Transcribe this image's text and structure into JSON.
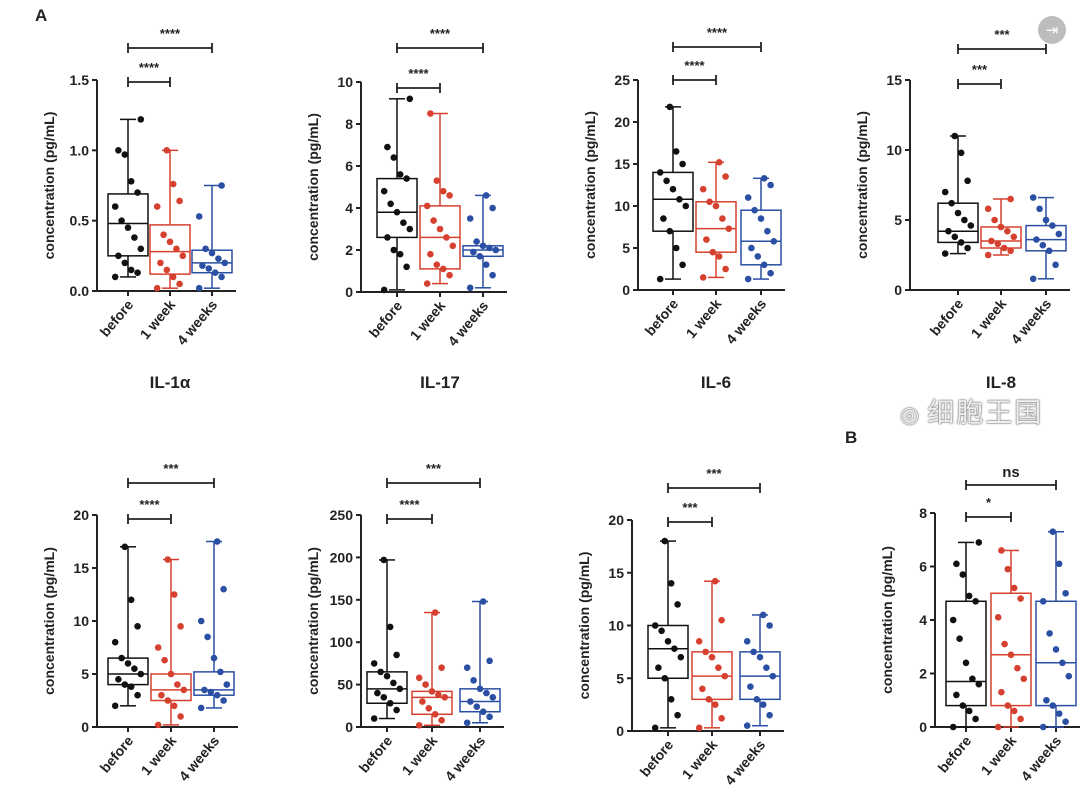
{
  "panel_labels": {
    "a": "A",
    "b": "B"
  },
  "export_icon": "export-icon",
  "watermark": "细胞王国",
  "chart_data": [
    {
      "type": "box",
      "title": "IL-1α",
      "ylabel": "concentration (pg/mL)",
      "ylim": [
        0,
        1.5
      ],
      "yticks": [
        "0.0",
        "0.5",
        "1.0",
        "1.5"
      ],
      "yticks_values": [
        0,
        0.5,
        1.0,
        1.5
      ],
      "categories": [
        "before",
        "1 week",
        "4 weeks"
      ],
      "colors": [
        "#111111",
        "#d6402f",
        "#2a4fa3"
      ],
      "series": [
        {
          "min": 0.1,
          "q1": 0.25,
          "median": 0.48,
          "q3": 0.69,
          "max": 1.22,
          "points": [
            0.1,
            0.13,
            0.15,
            0.2,
            0.25,
            0.3,
            0.38,
            0.45,
            0.5,
            0.6,
            0.7,
            0.78,
            0.97,
            1.0,
            1.22
          ]
        },
        {
          "min": 0.02,
          "q1": 0.12,
          "median": 0.28,
          "q3": 0.47,
          "max": 1.0,
          "points": [
            0.02,
            0.05,
            0.1,
            0.15,
            0.2,
            0.25,
            0.3,
            0.35,
            0.4,
            0.6,
            0.64,
            0.76,
            1.0
          ]
        },
        {
          "min": 0.02,
          "q1": 0.13,
          "median": 0.2,
          "q3": 0.29,
          "max": 0.75,
          "points": [
            0.02,
            0.1,
            0.13,
            0.16,
            0.18,
            0.2,
            0.23,
            0.27,
            0.3,
            0.53,
            0.75
          ]
        }
      ],
      "comparisons": [
        {
          "pair": [
            "before",
            "1 week"
          ],
          "label": "****"
        },
        {
          "pair": [
            "before",
            "4 weeks"
          ],
          "label": "****"
        }
      ]
    },
    {
      "type": "box",
      "title": "IL-17",
      "ylabel": "concentration (pg/mL)",
      "ylim": [
        0,
        10
      ],
      "yticks": [
        "0",
        "2",
        "4",
        "6",
        "8",
        "10"
      ],
      "yticks_values": [
        0,
        2,
        4,
        6,
        8,
        10
      ],
      "categories": [
        "before",
        "1 week",
        "4 weeks"
      ],
      "colors": [
        "#111111",
        "#d6402f",
        "#2a4fa3"
      ],
      "series": [
        {
          "min": 0.1,
          "q1": 2.6,
          "median": 3.8,
          "q3": 5.4,
          "max": 9.2,
          "points": [
            0.1,
            1.2,
            1.8,
            2.0,
            2.6,
            3.0,
            3.3,
            3.8,
            4.2,
            4.8,
            5.4,
            5.6,
            6.4,
            6.9,
            9.2
          ]
        },
        {
          "min": 0.4,
          "q1": 1.1,
          "median": 2.6,
          "q3": 4.1,
          "max": 8.5,
          "points": [
            0.4,
            0.8,
            1.1,
            1.3,
            1.8,
            2.2,
            2.6,
            3.0,
            3.4,
            4.1,
            4.6,
            4.8,
            5.3,
            8.5
          ]
        },
        {
          "min": 0.2,
          "q1": 1.7,
          "median": 2.0,
          "q3": 2.2,
          "max": 4.6,
          "points": [
            0.2,
            0.8,
            1.3,
            1.7,
            1.9,
            2.0,
            2.1,
            2.2,
            2.4,
            3.5,
            4.0,
            4.6
          ]
        }
      ],
      "comparisons": [
        {
          "pair": [
            "before",
            "1 week"
          ],
          "label": "****"
        },
        {
          "pair": [
            "before",
            "4 weeks"
          ],
          "label": "****"
        }
      ]
    },
    {
      "type": "box",
      "title": "IL-6",
      "ylabel": "concentration (pg/mL)",
      "ylim": [
        0,
        25
      ],
      "yticks": [
        "0",
        "5",
        "10",
        "15",
        "20",
        "25"
      ],
      "yticks_values": [
        0,
        5,
        10,
        15,
        20,
        25
      ],
      "categories": [
        "before",
        "1 week",
        "4 weeks"
      ],
      "colors": [
        "#111111",
        "#d6402f",
        "#2a4fa3"
      ],
      "series": [
        {
          "min": 1.3,
          "q1": 7,
          "median": 10.8,
          "q3": 14,
          "max": 21.8,
          "points": [
            1.3,
            3,
            5,
            7,
            8.5,
            10,
            10.8,
            12,
            13,
            14,
            15,
            16.5,
            21.8
          ]
        },
        {
          "min": 1.5,
          "q1": 4.5,
          "median": 7.3,
          "q3": 10.5,
          "max": 15.2,
          "points": [
            1.5,
            2.5,
            4,
            4.5,
            6,
            7.3,
            8.5,
            10,
            10.5,
            12,
            13.5,
            15.2
          ]
        },
        {
          "min": 1.3,
          "q1": 3,
          "median": 5.8,
          "q3": 9.5,
          "max": 13.3,
          "points": [
            1.3,
            2,
            3,
            4,
            5,
            5.8,
            7,
            8.5,
            9.5,
            11,
            12.5,
            13.3
          ]
        }
      ],
      "comparisons": [
        {
          "pair": [
            "before",
            "1 week"
          ],
          "label": "****"
        },
        {
          "pair": [
            "before",
            "4 weeks"
          ],
          "label": "****"
        }
      ]
    },
    {
      "type": "box",
      "title": "IL-8",
      "ylabel": "concentration (pg/mL)",
      "ylim": [
        0,
        15
      ],
      "yticks": [
        "0",
        "5",
        "10",
        "15"
      ],
      "yticks_values": [
        0,
        5,
        10,
        15
      ],
      "categories": [
        "before",
        "1 week",
        "4 weeks"
      ],
      "colors": [
        "#111111",
        "#d6402f",
        "#2a4fa3"
      ],
      "series": [
        {
          "min": 2.6,
          "q1": 3.4,
          "median": 4.2,
          "q3": 6.2,
          "max": 11,
          "points": [
            2.6,
            3,
            3.4,
            3.8,
            4.2,
            4.6,
            5,
            5.5,
            6.2,
            7,
            7.8,
            9.8,
            11
          ]
        },
        {
          "min": 2.5,
          "q1": 3,
          "median": 3.5,
          "q3": 4.5,
          "max": 6.5,
          "points": [
            2.5,
            2.8,
            3,
            3.3,
            3.5,
            3.8,
            4.2,
            4.5,
            5,
            5.8,
            6.5
          ]
        },
        {
          "min": 0.8,
          "q1": 2.8,
          "median": 3.6,
          "q3": 4.6,
          "max": 6.6,
          "points": [
            0.8,
            1.8,
            2.8,
            3.2,
            3.6,
            4,
            4.6,
            5,
            5.8,
            6.6
          ]
        }
      ],
      "comparisons": [
        {
          "pair": [
            "before",
            "1 week"
          ],
          "label": "***"
        },
        {
          "pair": [
            "before",
            "4 weeks"
          ],
          "label": "***"
        }
      ]
    },
    {
      "type": "box",
      "title": "",
      "ylabel": "concentration (pg/mL)",
      "ylim": [
        0,
        20
      ],
      "yticks": [
        "0",
        "5",
        "10",
        "15",
        "20"
      ],
      "yticks_values": [
        0,
        5,
        10,
        15,
        20
      ],
      "categories": [
        "before",
        "1 week",
        "4 weeks"
      ],
      "colors": [
        "#111111",
        "#d6402f",
        "#2a4fa3"
      ],
      "series": [
        {
          "min": 2,
          "q1": 4,
          "median": 5,
          "q3": 6.5,
          "max": 17,
          "points": [
            2,
            3,
            3.8,
            4,
            4.5,
            5,
            5.5,
            6,
            6.5,
            8,
            9.5,
            12,
            17
          ]
        },
        {
          "min": 0.2,
          "q1": 2.5,
          "median": 3.5,
          "q3": 5,
          "max": 15.8,
          "points": [
            0.2,
            1,
            2,
            2.5,
            3,
            3.5,
            4,
            5,
            6.3,
            7.5,
            9.5,
            12.5,
            15.8
          ]
        },
        {
          "min": 1.8,
          "q1": 3,
          "median": 3.5,
          "q3": 5.2,
          "max": 17.5,
          "points": [
            1.8,
            2.5,
            3,
            3.3,
            3.5,
            4,
            5.2,
            6.5,
            8.5,
            10,
            13,
            17.5
          ]
        }
      ],
      "comparisons": [
        {
          "pair": [
            "before",
            "1 week"
          ],
          "label": "****"
        },
        {
          "pair": [
            "before",
            "4 weeks"
          ],
          "label": "***"
        }
      ]
    },
    {
      "type": "box",
      "title": "",
      "ylabel": "concentration (pg/mL)",
      "ylim": [
        0,
        250
      ],
      "yticks": [
        "0",
        "50",
        "100",
        "150",
        "200",
        "250"
      ],
      "yticks_values": [
        0,
        50,
        100,
        150,
        200,
        250
      ],
      "categories": [
        "before",
        "1 week",
        "4 weeks"
      ],
      "colors": [
        "#111111",
        "#d6402f",
        "#2a4fa3"
      ],
      "series": [
        {
          "min": 10,
          "q1": 28,
          "median": 45,
          "q3": 65,
          "max": 197,
          "points": [
            10,
            20,
            28,
            35,
            40,
            45,
            52,
            60,
            65,
            75,
            85,
            118,
            197
          ]
        },
        {
          "min": 2,
          "q1": 15,
          "median": 35,
          "q3": 42,
          "max": 135,
          "points": [
            2,
            8,
            15,
            22,
            30,
            35,
            38,
            42,
            50,
            58,
            70,
            135
          ]
        },
        {
          "min": 5,
          "q1": 18,
          "median": 30,
          "q3": 45,
          "max": 148,
          "points": [
            5,
            12,
            18,
            24,
            30,
            35,
            40,
            45,
            55,
            70,
            78,
            148
          ]
        }
      ],
      "comparisons": [
        {
          "pair": [
            "before",
            "1 week"
          ],
          "label": "****"
        },
        {
          "pair": [
            "before",
            "4 weeks"
          ],
          "label": "***"
        }
      ]
    },
    {
      "type": "box",
      "title": "",
      "ylabel": "concentration (pg/mL)",
      "ylim": [
        0,
        20
      ],
      "yticks": [
        "0",
        "5",
        "10",
        "15",
        "20"
      ],
      "yticks_values": [
        0,
        5,
        10,
        15,
        20
      ],
      "categories": [
        "before",
        "1 week",
        "4 weeks"
      ],
      "colors": [
        "#111111",
        "#d6402f",
        "#2a4fa3"
      ],
      "series": [
        {
          "min": 0.3,
          "q1": 5,
          "median": 7.8,
          "q3": 10,
          "max": 18,
          "points": [
            0.3,
            1.5,
            3,
            5,
            6,
            7,
            7.8,
            8.5,
            9.5,
            10,
            12,
            14,
            18
          ]
        },
        {
          "min": 0.3,
          "q1": 3,
          "median": 5.2,
          "q3": 7.5,
          "max": 14.2,
          "points": [
            0.3,
            1.2,
            2.5,
            3,
            4,
            5.2,
            6,
            7,
            7.5,
            8.5,
            10.5,
            14.2
          ]
        },
        {
          "min": 0.5,
          "q1": 3,
          "median": 5.2,
          "q3": 7.5,
          "max": 11,
          "points": [
            0.5,
            1.5,
            2.5,
            3,
            4.2,
            5.2,
            6,
            7,
            7.5,
            8.5,
            10,
            11
          ]
        }
      ],
      "comparisons": [
        {
          "pair": [
            "before",
            "1 week"
          ],
          "label": "***"
        },
        {
          "pair": [
            "before",
            "4 weeks"
          ],
          "label": "***"
        }
      ]
    },
    {
      "type": "box",
      "title": "",
      "ylabel": "concentration (pg/mL)",
      "ylim": [
        0,
        8
      ],
      "yticks": [
        "0",
        "2",
        "4",
        "6",
        "8"
      ],
      "yticks_values": [
        0,
        2,
        4,
        6,
        8
      ],
      "categories": [
        "before",
        "1 week",
        "4 weeks"
      ],
      "colors": [
        "#111111",
        "#d6402f",
        "#2a4fa3"
      ],
      "series": [
        {
          "min": 0,
          "q1": 0.8,
          "median": 1.7,
          "q3": 4.7,
          "max": 6.9,
          "points": [
            0,
            0.3,
            0.6,
            0.8,
            1.2,
            1.6,
            1.8,
            2.4,
            3.3,
            4.0,
            4.7,
            4.9,
            5.7,
            6.1,
            6.9
          ]
        },
        {
          "min": 0,
          "q1": 0.8,
          "median": 2.7,
          "q3": 5.0,
          "max": 6.6,
          "points": [
            0,
            0.3,
            0.6,
            0.8,
            1.3,
            1.8,
            2.2,
            2.7,
            3.1,
            4.1,
            4.8,
            5.2,
            5.9,
            6.6
          ]
        },
        {
          "min": 0,
          "q1": 0.8,
          "median": 2.4,
          "q3": 4.7,
          "max": 7.3,
          "points": [
            0,
            0.2,
            0.5,
            0.8,
            1.0,
            1.9,
            2.4,
            2.9,
            3.5,
            4.7,
            5.0,
            6.1,
            7.3
          ]
        }
      ],
      "comparisons": [
        {
          "pair": [
            "before",
            "1 week"
          ],
          "label": "*"
        },
        {
          "pair": [
            "before",
            "4 weeks"
          ],
          "label": "ns"
        }
      ]
    }
  ]
}
